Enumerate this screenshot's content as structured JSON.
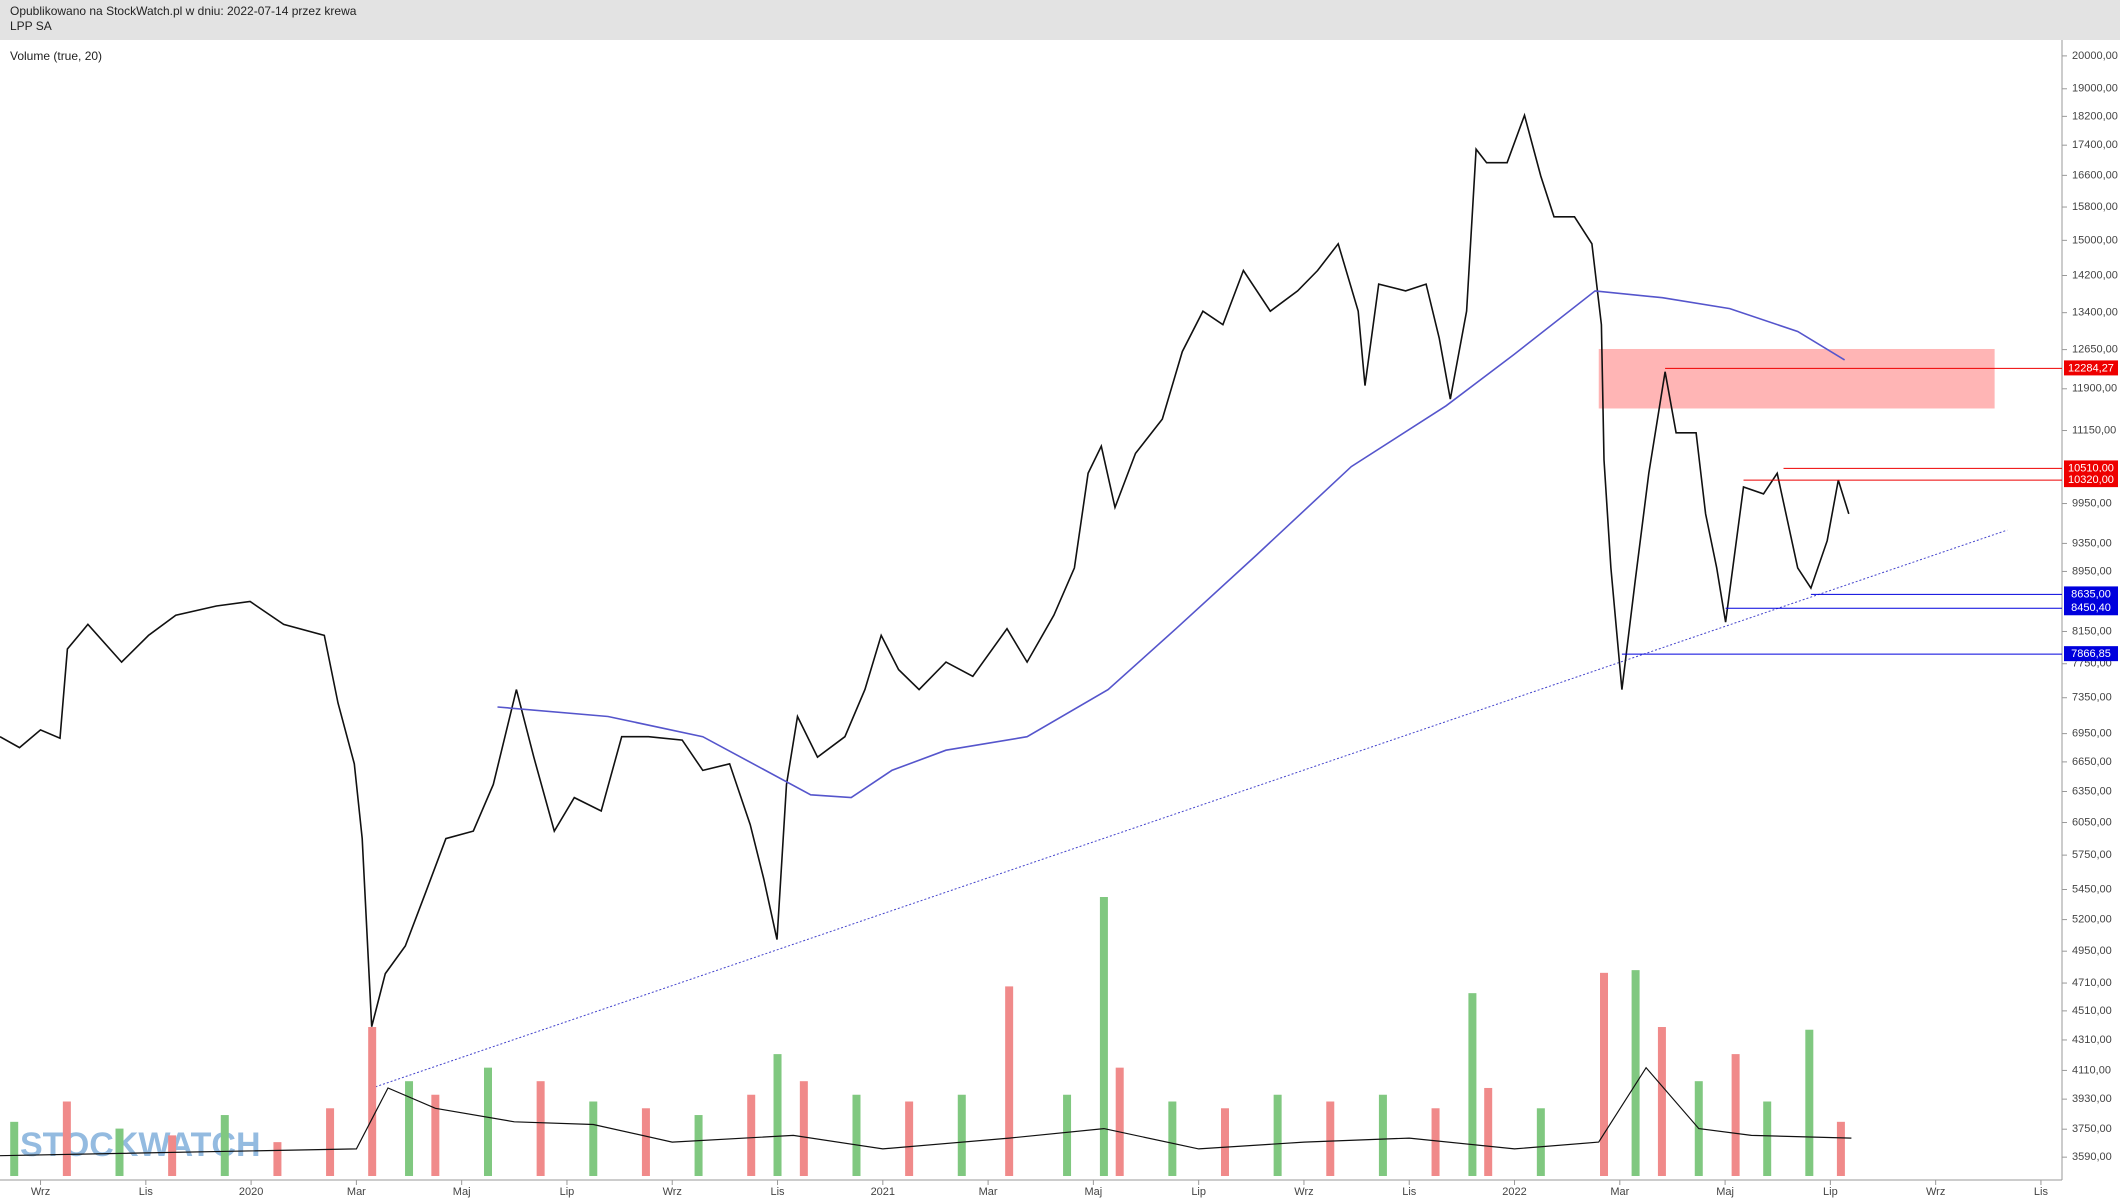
{
  "chart_data": {
    "type": "line",
    "title": "Opublikowano na StockWatch.pl w dniu: 2022-07-14 przez krewa",
    "subtitle": "LPP SA",
    "watermark": "STOCKWATCH",
    "log_scale": true,
    "xlim": [
      -0.77,
      38.4
    ],
    "xticks": [
      {
        "value": 0,
        "label": "Wrz"
      },
      {
        "value": 2,
        "label": "Lis"
      },
      {
        "value": 4,
        "label": "2020"
      },
      {
        "value": 6,
        "label": "Mar"
      },
      {
        "value": 8,
        "label": "Maj"
      },
      {
        "value": 10,
        "label": "Lip"
      },
      {
        "value": 12,
        "label": "Wrz"
      },
      {
        "value": 14,
        "label": "Lis"
      },
      {
        "value": 16,
        "label": "2021"
      },
      {
        "value": 18,
        "label": "Mar"
      },
      {
        "value": 20,
        "label": "Maj"
      },
      {
        "value": 22,
        "label": "Lip"
      },
      {
        "value": 24,
        "label": "Wrz"
      },
      {
        "value": 26,
        "label": "Lis"
      },
      {
        "value": 28,
        "label": "2022"
      },
      {
        "value": 30,
        "label": "Mar"
      },
      {
        "value": 32,
        "label": "Maj"
      },
      {
        "value": 34,
        "label": "Lip"
      },
      {
        "value": 36,
        "label": "Wrz"
      },
      {
        "value": 38,
        "label": "Lis"
      }
    ],
    "ylim": [
      3486,
      20470
    ],
    "yticks": [
      {
        "value": 20000,
        "label": "20000,00"
      },
      {
        "value": 19000,
        "label": "19000,00"
      },
      {
        "value": 18200,
        "label": "18200,00"
      },
      {
        "value": 17400,
        "label": "17400,00"
      },
      {
        "value": 16600,
        "label": "16600,00"
      },
      {
        "value": 15800,
        "label": "15800,00"
      },
      {
        "value": 15000,
        "label": "15000,00"
      },
      {
        "value": 14200,
        "label": "14200,00"
      },
      {
        "value": 13400,
        "label": "13400,00"
      },
      {
        "value": 12650,
        "label": "12650,00"
      },
      {
        "value": 11900,
        "label": "11900,00"
      },
      {
        "value": 11150,
        "label": "11150,00"
      },
      {
        "value": 9950,
        "label": "9950,00"
      },
      {
        "value": 9350,
        "label": "9350,00"
      },
      {
        "value": 8950,
        "label": "8950,00"
      },
      {
        "value": 8150,
        "label": "8150,00"
      },
      {
        "value": 7750,
        "label": "7750,00"
      },
      {
        "value": 7350,
        "label": "7350,00"
      },
      {
        "value": 6950,
        "label": "6950,00"
      },
      {
        "value": 6650,
        "label": "6650,00"
      },
      {
        "value": 6350,
        "label": "6350,00"
      },
      {
        "value": 6050,
        "label": "6050,00"
      },
      {
        "value": 5750,
        "label": "5750,00"
      },
      {
        "value": 5450,
        "label": "5450,00"
      },
      {
        "value": 5200,
        "label": "5200,00"
      },
      {
        "value": 4950,
        "label": "4950,00"
      },
      {
        "value": 4710,
        "label": "4710,00"
      },
      {
        "value": 4510,
        "label": "4510,00"
      },
      {
        "value": 4310,
        "label": "4310,00"
      },
      {
        "value": 4110,
        "label": "4110,00"
      },
      {
        "value": 3930,
        "label": "3930,00"
      },
      {
        "value": 3750,
        "label": "3750,00"
      },
      {
        "value": 3590,
        "label": "3590,00"
      }
    ],
    "zone": {
      "x": [
        29.6,
        37.12
      ],
      "values": [
        12662,
        11540
      ],
      "color": "#ff9c9c"
    },
    "trendline": {
      "x": [
        6.29,
        37.36
      ],
      "values": [
        3998,
        9546
      ],
      "color": "#4444cc"
    },
    "levels": [
      {
        "value": 12284.27,
        "label": "12284,27",
        "x": 30.86,
        "color": "#ee0000"
      },
      {
        "value": 10510,
        "label": "10510,00",
        "x": 33.11,
        "color": "#ee0000"
      },
      {
        "value": 10320,
        "label": "10320,00",
        "x": 32.35,
        "color": "#ee0000"
      },
      {
        "value": 8635,
        "label": "8635,00",
        "x": 33.63,
        "color": "#0000dd"
      },
      {
        "value": 8450.4,
        "label": "8450,40",
        "x": 32.01,
        "color": "#0000dd"
      },
      {
        "value": 7866.85,
        "label": "7866,85",
        "x": 30.04,
        "color": "#0000dd"
      }
    ],
    "series": [
      {
        "type": "bar",
        "axis": "volume",
        "name": "Volume (true, 20)",
        "x": [
          -0.5,
          0.5,
          1.5,
          2.5,
          3.5,
          4.5,
          5.5,
          6.3,
          7.0,
          7.5,
          8.5,
          9.5,
          10.5,
          11.5,
          12.5,
          13.5,
          14.0,
          14.5,
          15.5,
          16.5,
          17.5,
          18.4,
          19.5,
          20.2,
          20.5,
          21.5,
          22.5,
          23.5,
          24.5,
          25.5,
          26.5,
          27.2,
          27.5,
          28.5,
          29.7,
          30.3,
          30.8,
          31.5,
          32.2,
          32.8,
          33.6,
          34.2
        ],
        "values": [
          40,
          55,
          35,
          30,
          45,
          25,
          50,
          110,
          70,
          60,
          80,
          70,
          55,
          50,
          45,
          60,
          90,
          70,
          60,
          55,
          60,
          140,
          60,
          206,
          80,
          55,
          50,
          60,
          55,
          60,
          50,
          135,
          65,
          50,
          150,
          152,
          110,
          70,
          90,
          55,
          108,
          40
        ],
        "colors": [
          "#80c880",
          "#f08a8a",
          "#80c880",
          "#f08a8a",
          "#80c880",
          "#f08a8a",
          "#f08a8a",
          "#f08a8a",
          "#80c880",
          "#f08a8a",
          "#80c880",
          "#f08a8a",
          "#80c880",
          "#f08a8a",
          "#80c880",
          "#f08a8a",
          "#80c880",
          "#f08a8a",
          "#80c880",
          "#f08a8a",
          "#80c880",
          "#f08a8a",
          "#80c880",
          "#80c880",
          "#f08a8a",
          "#80c880",
          "#f08a8a",
          "#80c880",
          "#f08a8a",
          "#80c880",
          "#f08a8a",
          "#80c880",
          "#f08a8a",
          "#80c880",
          "#f08a8a",
          "#80c880",
          "#f08a8a",
          "#80c880",
          "#f08a8a",
          "#80c880",
          "#80c880",
          "#f08a8a"
        ]
      },
      {
        "type": "line",
        "axis": "volume",
        "color": "#111111",
        "x": [
          -0.77,
          6.0,
          6.6,
          7.5,
          9.0,
          10.5,
          12.0,
          14.3,
          16.0,
          18.4,
          20.2,
          22.0,
          24.0,
          26.0,
          28.0,
          29.6,
          30.5,
          31.5,
          32.5,
          34.4
        ],
        "values": [
          15,
          20,
          65,
          50,
          40,
          38,
          25,
          30,
          20,
          28,
          35,
          20,
          25,
          28,
          20,
          25,
          80,
          35,
          30,
          28
        ]
      },
      {
        "type": "line",
        "color": "#111111",
        "x": [
          -0.77,
          -0.4,
          0.0,
          0.37,
          0.51,
          0.9,
          1.54,
          2.05,
          2.57,
          3.34,
          3.98,
          4.62,
          5.39,
          5.65,
          5.96,
          6.11,
          6.29,
          6.55,
          6.93,
          7.32,
          7.7,
          8.22,
          8.6,
          9.04,
          9.37,
          9.76,
          10.14,
          10.65,
          11.04,
          11.55,
          12.19,
          12.58,
          13.09,
          13.48,
          13.74,
          13.99,
          14.17,
          14.38,
          14.76,
          15.28,
          15.66,
          15.97,
          16.3,
          16.69,
          17.2,
          17.71,
          18.36,
          18.74,
          19.25,
          19.64,
          19.9,
          20.15,
          20.41,
          20.8,
          21.31,
          21.69,
          22.08,
          22.46,
          22.85,
          23.36,
          23.88,
          24.26,
          24.65,
          25.03,
          25.16,
          25.42,
          25.93,
          26.32,
          26.57,
          26.78,
          27.09,
          27.27,
          27.47,
          27.86,
          28.19,
          28.5,
          28.75,
          29.14,
          29.47,
          29.65,
          29.7,
          29.83,
          30.04,
          30.29,
          30.55,
          30.86,
          31.07,
          31.45,
          31.63,
          31.84,
          32.01,
          32.35,
          32.73,
          32.99,
          33.38,
          33.63,
          33.94,
          34.15,
          34.35
        ],
        "values": [
          6916,
          6800,
          6990,
          6900,
          7930,
          8240,
          7770,
          8100,
          8360,
          8480,
          8540,
          8240,
          8100,
          7290,
          6630,
          5900,
          4400,
          4780,
          4990,
          5430,
          5900,
          5970,
          6420,
          7444,
          6700,
          5970,
          6290,
          6160,
          6916,
          6916,
          6880,
          6562,
          6630,
          6030,
          5540,
          5040,
          6420,
          7138,
          6700,
          6916,
          7444,
          8100,
          7680,
          7444,
          7770,
          7600,
          8186,
          7770,
          8360,
          9000,
          10430,
          10880,
          9890,
          10760,
          11350,
          12610,
          13430,
          13150,
          14310,
          13430,
          13862,
          14310,
          14920,
          13430,
          11960,
          14010,
          13862,
          14010,
          12880,
          11710,
          13430,
          17290,
          16930,
          16930,
          18230,
          16580,
          15560,
          15560,
          14920,
          13150,
          10650,
          9000,
          7444,
          8810,
          10430,
          12220,
          11110,
          11110,
          9790,
          9000,
          8270,
          10210,
          10100,
          10430,
          9000,
          8720,
          9390,
          10320,
          9790
        ]
      },
      {
        "type": "line",
        "color": "#5555cc",
        "x": [
          8.68,
          10.78,
          12.58,
          14.63,
          15.4,
          16.17,
          17.2,
          18.74,
          20.28,
          21.57,
          23.11,
          24.9,
          26.7,
          27.99,
          29.53,
          30.81,
          32.09,
          33.38,
          34.27
        ],
        "values": [
          7244,
          7138,
          6916,
          6317,
          6290,
          6562,
          6772,
          6916,
          7444,
          8186,
          9190,
          10540,
          11588,
          12554,
          13862,
          13716,
          13486,
          13012,
          12448
        ]
      }
    ]
  }
}
